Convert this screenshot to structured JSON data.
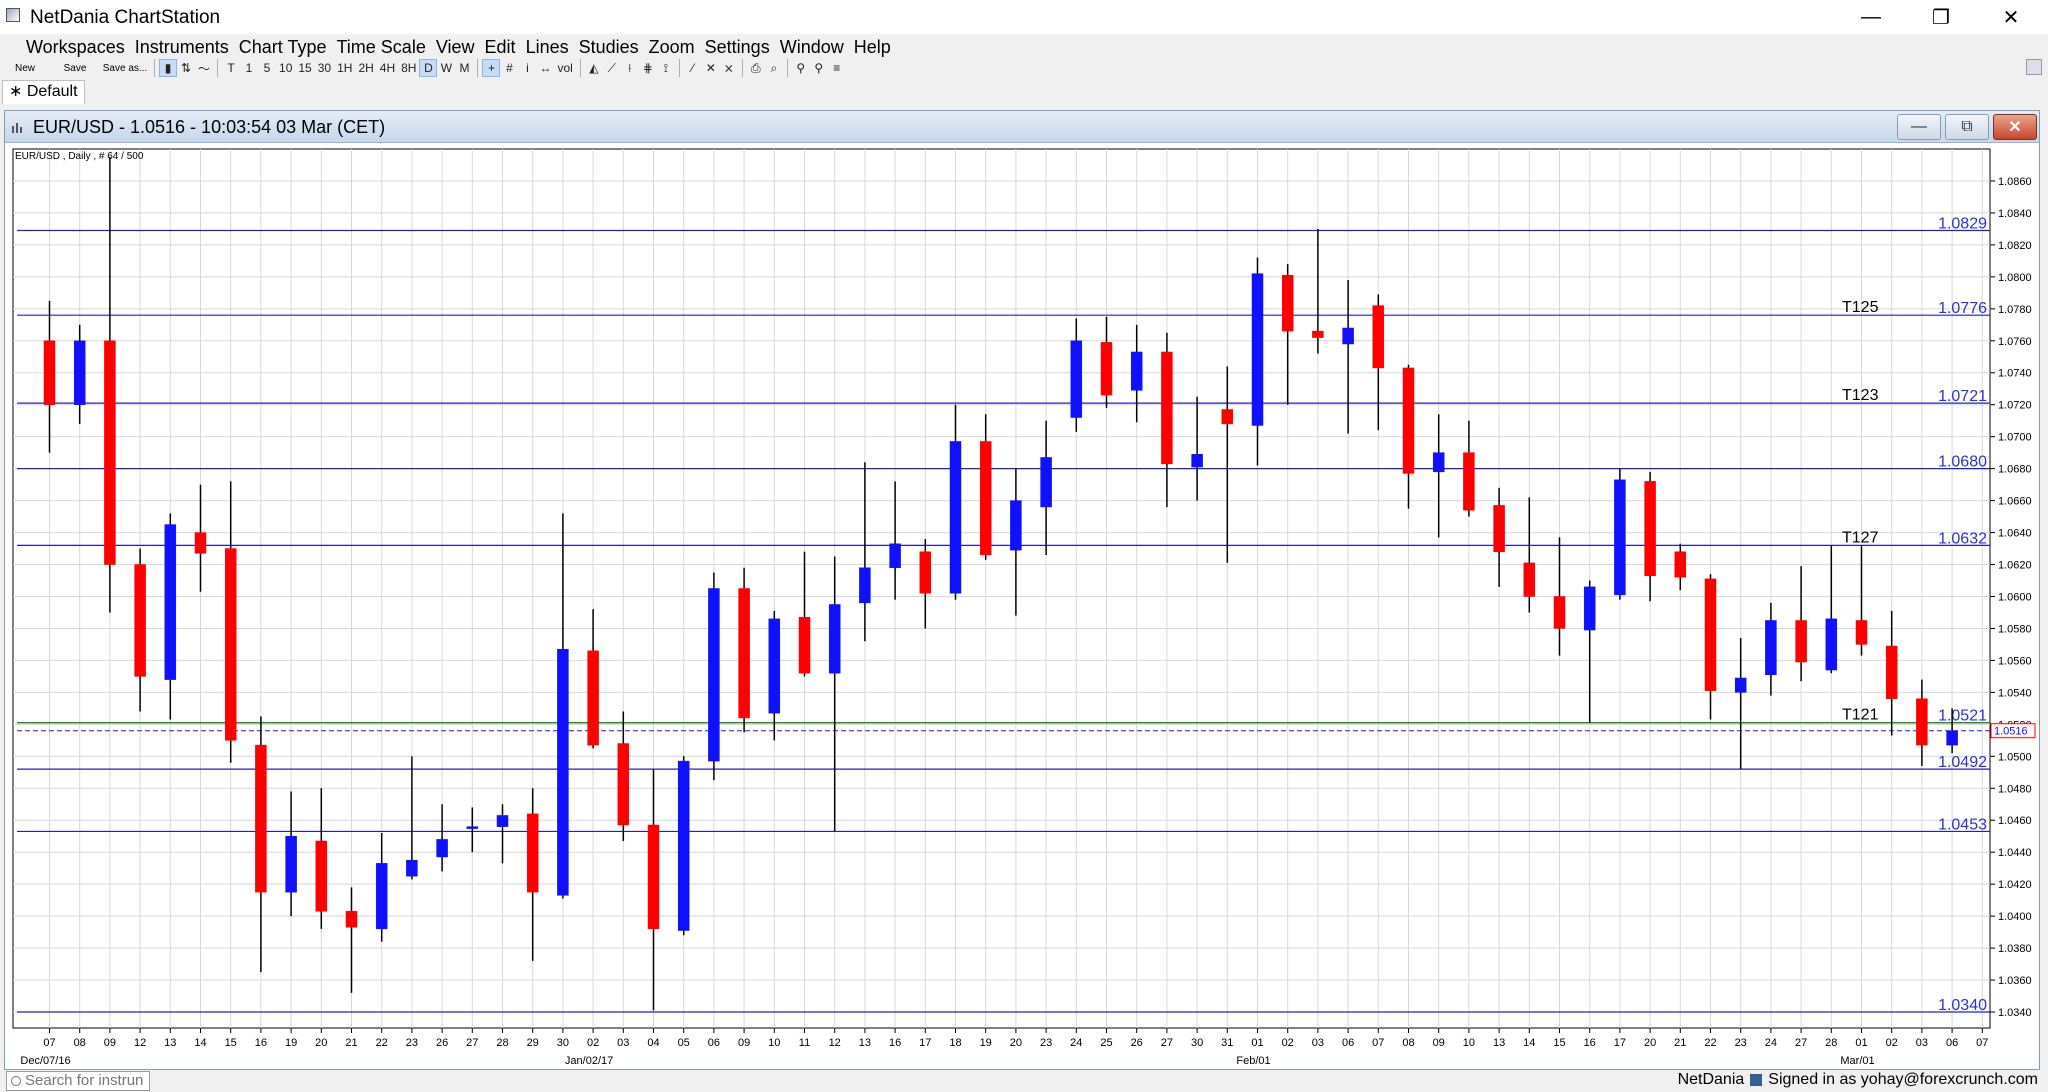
{
  "app": {
    "title": "NetDania ChartStation",
    "icons": {
      "app": "chart-app-icon",
      "minimize": "minimize-icon",
      "restore": "restore-icon",
      "close": "close-icon"
    },
    "window_glyphs": {
      "minimize": "—",
      "restore": "❐",
      "close": "✕"
    }
  },
  "menu": [
    "Workspaces",
    "Instruments",
    "Chart Type",
    "Time Scale",
    "View",
    "Edit",
    "Lines",
    "Studies",
    "Zoom",
    "Settings",
    "Window",
    "Help"
  ],
  "toolbar": {
    "file_buttons": [
      "New",
      "Save",
      "Save as..."
    ],
    "chart_type_buttons": [
      "▮",
      "⇅",
      "〜"
    ],
    "timescale_buttons": [
      "T",
      "1",
      "5",
      "10",
      "15",
      "30",
      "1H",
      "2H",
      "4H",
      "8H",
      "D",
      "W",
      "M"
    ],
    "active_timescale": "D",
    "tool_buttons": [
      "+",
      "#",
      "i",
      "↔",
      "vol",
      "◭",
      "⟋",
      "⟊",
      "⋕",
      "⟟",
      "⁄",
      "✕",
      "⨯",
      "⎙",
      "⌕",
      "⚲",
      "⚲",
      "≡"
    ]
  },
  "workspace_tab": "∗ Default",
  "chart_window": {
    "title": "EUR/USD - 1.0516 - 10:03:54  03 Mar (CET)",
    "glyphs": {
      "minimize": "—",
      "restore": "⧉",
      "close": "✕"
    }
  },
  "status": {
    "search_placeholder": "Search for instrun",
    "brand": "NetDania",
    "signed_in": "Signed in as yohay@forexcrunch.com"
  },
  "chart_data": {
    "type": "candlestick",
    "title": "EUR/USD , Daily , # 64 / 500",
    "colors": {
      "up": "#1010ff",
      "down": "#ff0000",
      "hline": "#2020c0",
      "green": "#008000",
      "current": "#2020c0",
      "grid": "#d8d8d8"
    },
    "ylim": [
      1.033,
      1.088
    ],
    "y_ticks": [
      "1.0860",
      "1.0840",
      "1.0820",
      "1.0800",
      "1.0780",
      "1.0760",
      "1.0740",
      "1.0720",
      "1.0700",
      "1.0680",
      "1.0660",
      "1.0640",
      "1.0620",
      "1.0600",
      "1.0580",
      "1.0560",
      "1.0540",
      "1.0520",
      "1.0500",
      "1.0480",
      "1.0460",
      "1.0440",
      "1.0420",
      "1.0400",
      "1.0380",
      "1.0360",
      "1.0340"
    ],
    "x_labels": [
      "07",
      "08",
      "09",
      "12",
      "13",
      "14",
      "15",
      "16",
      "19",
      "20",
      "21",
      "22",
      "23",
      "26",
      "27",
      "28",
      "29",
      "30",
      "02",
      "03",
      "04",
      "05",
      "06",
      "09",
      "10",
      "11",
      "12",
      "13",
      "16",
      "17",
      "18",
      "19",
      "20",
      "23",
      "24",
      "25",
      "26",
      "27",
      "30",
      "31",
      "01",
      "02",
      "03",
      "06",
      "07",
      "08",
      "09",
      "10",
      "13",
      "14",
      "15",
      "16",
      "17",
      "20",
      "21",
      "22",
      "23",
      "24",
      "27",
      "28",
      "01",
      "02",
      "03",
      "06",
      "07"
    ],
    "month_labels": [
      {
        "index": 0,
        "label": "Dec/07/16"
      },
      {
        "index": 18,
        "label": "Jan/02/17"
      },
      {
        "index": 40,
        "label": "Feb/01"
      },
      {
        "index": 60,
        "label": "Mar/01"
      }
    ],
    "candles": [
      {
        "o": 1.076,
        "h": 1.0785,
        "l": 1.069,
        "c": 1.072
      },
      {
        "o": 1.072,
        "h": 1.077,
        "l": 1.0708,
        "c": 1.076
      },
      {
        "o": 1.076,
        "h": 1.0875,
        "l": 1.059,
        "c": 1.062
      },
      {
        "o": 1.062,
        "h": 1.063,
        "l": 1.0528,
        "c": 1.055
      },
      {
        "o": 1.0548,
        "h": 1.0652,
        "l": 1.0523,
        "c": 1.0645
      },
      {
        "o": 1.064,
        "h": 1.067,
        "l": 1.0603,
        "c": 1.0627
      },
      {
        "o": 1.063,
        "h": 1.0672,
        "l": 1.0496,
        "c": 1.051
      },
      {
        "o": 1.0507,
        "h": 1.0525,
        "l": 1.0365,
        "c": 1.0415
      },
      {
        "o": 1.0415,
        "h": 1.0478,
        "l": 1.04,
        "c": 1.045
      },
      {
        "o": 1.0447,
        "h": 1.048,
        "l": 1.0392,
        "c": 1.0403
      },
      {
        "o": 1.0403,
        "h": 1.0418,
        "l": 1.0352,
        "c": 1.0393
      },
      {
        "o": 1.0392,
        "h": 1.0452,
        "l": 1.0384,
        "c": 1.0433
      },
      {
        "o": 1.0425,
        "h": 1.05,
        "l": 1.0423,
        "c": 1.0435
      },
      {
        "o": 1.0437,
        "h": 1.047,
        "l": 1.0428,
        "c": 1.0448
      },
      {
        "o": 1.0455,
        "h": 1.0468,
        "l": 1.044,
        "c": 1.0456
      },
      {
        "o": 1.0456,
        "h": 1.047,
        "l": 1.0433,
        "c": 1.0463
      },
      {
        "o": 1.0464,
        "h": 1.048,
        "l": 1.0372,
        "c": 1.0415
      },
      {
        "o": 1.0413,
        "h": 1.0652,
        "l": 1.0411,
        "c": 1.0567
      },
      {
        "o": 1.0566,
        "h": 1.0592,
        "l": 1.0505,
        "c": 1.0507
      },
      {
        "o": 1.0508,
        "h": 1.0528,
        "l": 1.0447,
        "c": 1.0457
      },
      {
        "o": 1.0457,
        "h": 1.0492,
        "l": 1.0341,
        "c": 1.0392
      },
      {
        "o": 1.0391,
        "h": 1.05,
        "l": 1.0388,
        "c": 1.0497
      },
      {
        "o": 1.0497,
        "h": 1.0615,
        "l": 1.0485,
        "c": 1.0605
      },
      {
        "o": 1.0605,
        "h": 1.0618,
        "l": 1.0515,
        "c": 1.0524
      },
      {
        "o": 1.0527,
        "h": 1.0591,
        "l": 1.051,
        "c": 1.0586
      },
      {
        "o": 1.0587,
        "h": 1.0628,
        "l": 1.055,
        "c": 1.0552
      },
      {
        "o": 1.0552,
        "h": 1.0625,
        "l": 1.0453,
        "c": 1.0595
      },
      {
        "o": 1.0596,
        "h": 1.0684,
        "l": 1.0572,
        "c": 1.0618
      },
      {
        "o": 1.0618,
        "h": 1.0672,
        "l": 1.0598,
        "c": 1.0633
      },
      {
        "o": 1.0628,
        "h": 1.0636,
        "l": 1.058,
        "c": 1.0602
      },
      {
        "o": 1.0602,
        "h": 1.072,
        "l": 1.0598,
        "c": 1.0697
      },
      {
        "o": 1.0697,
        "h": 1.0714,
        "l": 1.0623,
        "c": 1.0626
      },
      {
        "o": 1.0629,
        "h": 1.068,
        "l": 1.0588,
        "c": 1.066
      },
      {
        "o": 1.0656,
        "h": 1.071,
        "l": 1.0626,
        "c": 1.0687
      },
      {
        "o": 1.0712,
        "h": 1.0774,
        "l": 1.0703,
        "c": 1.076
      },
      {
        "o": 1.0759,
        "h": 1.0775,
        "l": 1.0718,
        "c": 1.0726
      },
      {
        "o": 1.0729,
        "h": 1.077,
        "l": 1.0709,
        "c": 1.0753
      },
      {
        "o": 1.0753,
        "h": 1.0765,
        "l": 1.0656,
        "c": 1.0683
      },
      {
        "o": 1.0681,
        "h": 1.0725,
        "l": 1.066,
        "c": 1.0689
      },
      {
        "o": 1.0717,
        "h": 1.0744,
        "l": 1.0621,
        "c": 1.0708
      },
      {
        "o": 1.0707,
        "h": 1.0812,
        "l": 1.0682,
        "c": 1.0802
      },
      {
        "o": 1.0801,
        "h": 1.0808,
        "l": 1.072,
        "c": 1.0766
      },
      {
        "o": 1.0766,
        "h": 1.083,
        "l": 1.0752,
        "c": 1.0762
      },
      {
        "o": 1.0758,
        "h": 1.0798,
        "l": 1.0702,
        "c": 1.0768
      },
      {
        "o": 1.0782,
        "h": 1.0789,
        "l": 1.0704,
        "c": 1.0743
      },
      {
        "o": 1.0743,
        "h": 1.0745,
        "l": 1.0655,
        "c": 1.0677
      },
      {
        "o": 1.0678,
        "h": 1.0714,
        "l": 1.0637,
        "c": 1.069
      },
      {
        "o": 1.069,
        "h": 1.071,
        "l": 1.065,
        "c": 1.0654
      },
      {
        "o": 1.0657,
        "h": 1.0668,
        "l": 1.0606,
        "c": 1.0628
      },
      {
        "o": 1.0621,
        "h": 1.0662,
        "l": 1.059,
        "c": 1.06
      },
      {
        "o": 1.06,
        "h": 1.0637,
        "l": 1.0563,
        "c": 1.058
      },
      {
        "o": 1.0579,
        "h": 1.061,
        "l": 1.0521,
        "c": 1.0606
      },
      {
        "o": 1.0601,
        "h": 1.068,
        "l": 1.0598,
        "c": 1.0673
      },
      {
        "o": 1.0672,
        "h": 1.0678,
        "l": 1.0597,
        "c": 1.0613
      },
      {
        "o": 1.0628,
        "h": 1.0633,
        "l": 1.0604,
        "c": 1.0612
      },
      {
        "o": 1.0611,
        "h": 1.0614,
        "l": 1.0523,
        "c": 1.0541
      },
      {
        "o": 1.054,
        "h": 1.0574,
        "l": 1.0492,
        "c": 1.0549
      },
      {
        "o": 1.0551,
        "h": 1.0596,
        "l": 1.0538,
        "c": 1.0585
      },
      {
        "o": 1.0585,
        "h": 1.0619,
        "l": 1.0547,
        "c": 1.0559
      },
      {
        "o": 1.0554,
        "h": 1.0632,
        "l": 1.0552,
        "c": 1.0586
      },
      {
        "o": 1.0585,
        "h": 1.0632,
        "l": 1.0563,
        "c": 1.057
      },
      {
        "o": 1.0569,
        "h": 1.0591,
        "l": 1.0513,
        "c": 1.0536
      },
      {
        "o": 1.0536,
        "h": 1.0548,
        "l": 1.0494,
        "c": 1.0507
      },
      {
        "o": 1.0507,
        "h": 1.053,
        "l": 1.0502,
        "c": 1.0516
      }
    ],
    "hlines": [
      {
        "value": 1.0829,
        "label": "1.0829",
        "tag": ""
      },
      {
        "value": 1.0776,
        "label": "1.0776",
        "tag": "T125"
      },
      {
        "value": 1.0721,
        "label": "1.0721",
        "tag": "T123"
      },
      {
        "value": 1.068,
        "label": "1.0680",
        "tag": ""
      },
      {
        "value": 1.0632,
        "label": "1.0632",
        "tag": "T127"
      },
      {
        "value": 1.0521,
        "label": "1.0521",
        "tag": "T121",
        "color": "green"
      },
      {
        "value": 1.0492,
        "label": "1.0492",
        "tag": ""
      },
      {
        "value": 1.0453,
        "label": "1.0453",
        "tag": ""
      },
      {
        "value": 1.034,
        "label": "1.0340",
        "tag": ""
      }
    ],
    "current_price": {
      "value": 1.0516,
      "label": "1.0516"
    }
  }
}
